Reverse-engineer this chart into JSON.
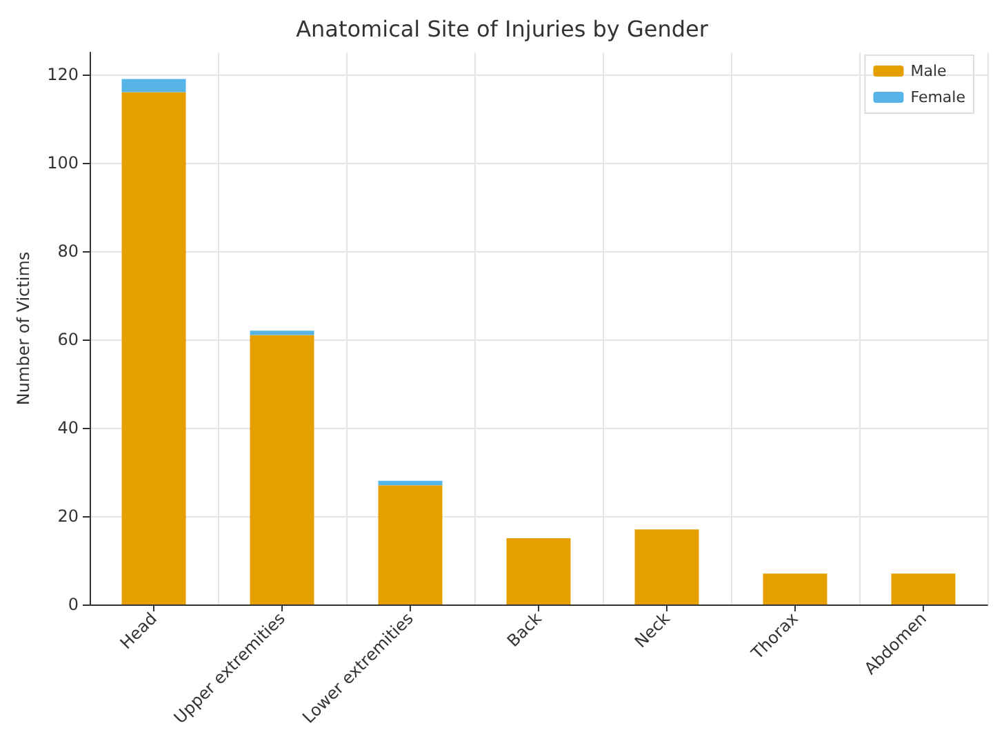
{
  "chart_data": {
    "type": "bar",
    "title": "Anatomical Site of Injuries by Gender",
    "ylabel": "Number of Victims",
    "categories": [
      "Head",
      "Upper extremities",
      "Lower extremities",
      "Back",
      "Neck",
      "Thorax",
      "Abdomen"
    ],
    "series": [
      {
        "name": "Male",
        "color": "#e69f00",
        "values": [
          116,
          61,
          27,
          15,
          17,
          7,
          7
        ]
      },
      {
        "name": "Female",
        "color": "#56b4e9",
        "values": [
          3,
          1,
          1,
          0,
          0,
          0,
          0
        ]
      }
    ],
    "stacked": true,
    "ylim": [
      0,
      125
    ],
    "yticks": [
      0,
      20,
      40,
      60,
      80,
      100,
      120
    ],
    "grid": true,
    "legend": "top right"
  }
}
